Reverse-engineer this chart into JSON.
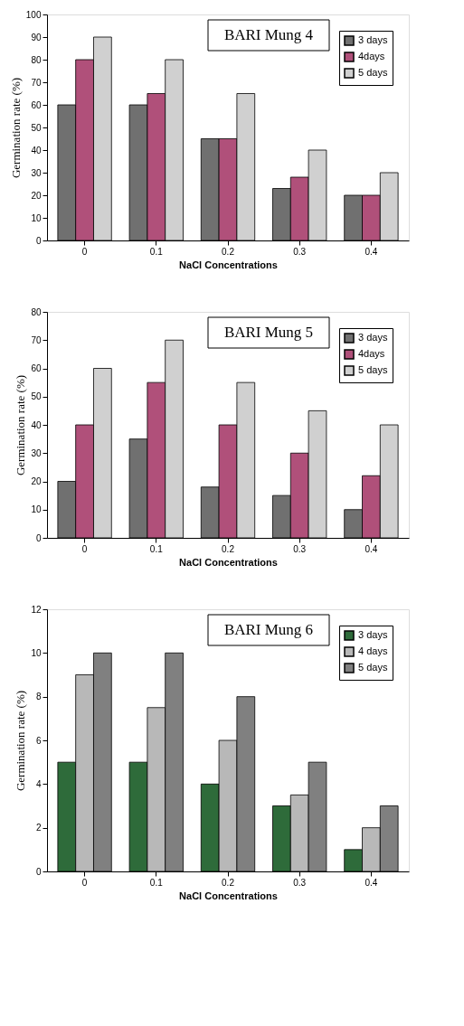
{
  "chart_data": [
    {
      "type": "bar",
      "title": "BARI Mung 4",
      "xlabel": "NaCl Concentrations",
      "ylabel": "Germination rate (%)",
      "categories": [
        "0",
        "0.1",
        "0.2",
        "0.3",
        "0.4"
      ],
      "ylim": [
        0,
        100
      ],
      "yticks": [
        0,
        10,
        20,
        30,
        40,
        50,
        60,
        70,
        80,
        90,
        100
      ],
      "legend": "top right",
      "grid": false,
      "series": [
        {
          "name": "3 days",
          "color": "#707070",
          "values": [
            60,
            60,
            45,
            23,
            20
          ]
        },
        {
          "name": "4days",
          "color": "#b0507a",
          "values": [
            80,
            65,
            45,
            28,
            20
          ]
        },
        {
          "name": "5 days",
          "color": "#d0d0d0",
          "values": [
            90,
            80,
            65,
            40,
            30
          ]
        }
      ]
    },
    {
      "type": "bar",
      "title": "BARI Mung 5",
      "xlabel": "NaCl Concentrations",
      "ylabel": "Germination rate (%)",
      "categories": [
        "0",
        "0.1",
        "0.2",
        "0.3",
        "0.4"
      ],
      "ylim": [
        0,
        80
      ],
      "yticks": [
        0,
        10,
        20,
        30,
        40,
        50,
        60,
        70,
        80
      ],
      "legend": "top right",
      "grid": false,
      "series": [
        {
          "name": "3 days",
          "color": "#707070",
          "values": [
            20,
            35,
            18,
            15,
            10
          ]
        },
        {
          "name": "4days",
          "color": "#b0507a",
          "values": [
            40,
            55,
            40,
            30,
            22
          ]
        },
        {
          "name": "5 days",
          "color": "#d0d0d0",
          "values": [
            60,
            70,
            55,
            45,
            40
          ]
        }
      ]
    },
    {
      "type": "bar",
      "title": "BARI Mung 6",
      "xlabel": "NaCl Concentrations",
      "ylabel": "Germination rate (%)",
      "categories": [
        "0",
        "0.1",
        "0.2",
        "0.3",
        "0.4"
      ],
      "ylim": [
        0,
        12
      ],
      "yticks": [
        0,
        2,
        4,
        6,
        8,
        10,
        12
      ],
      "legend": "top right",
      "grid": false,
      "series": [
        {
          "name": "3 days",
          "color": "#2e6b3a",
          "values": [
            5,
            5,
            4,
            3,
            1
          ]
        },
        {
          "name": "4 days",
          "color": "#b8b8b8",
          "values": [
            9,
            7.5,
            6,
            3.5,
            2
          ]
        },
        {
          "name": "5 days",
          "color": "#808080",
          "values": [
            10,
            10,
            8,
            5,
            3
          ]
        }
      ]
    }
  ]
}
